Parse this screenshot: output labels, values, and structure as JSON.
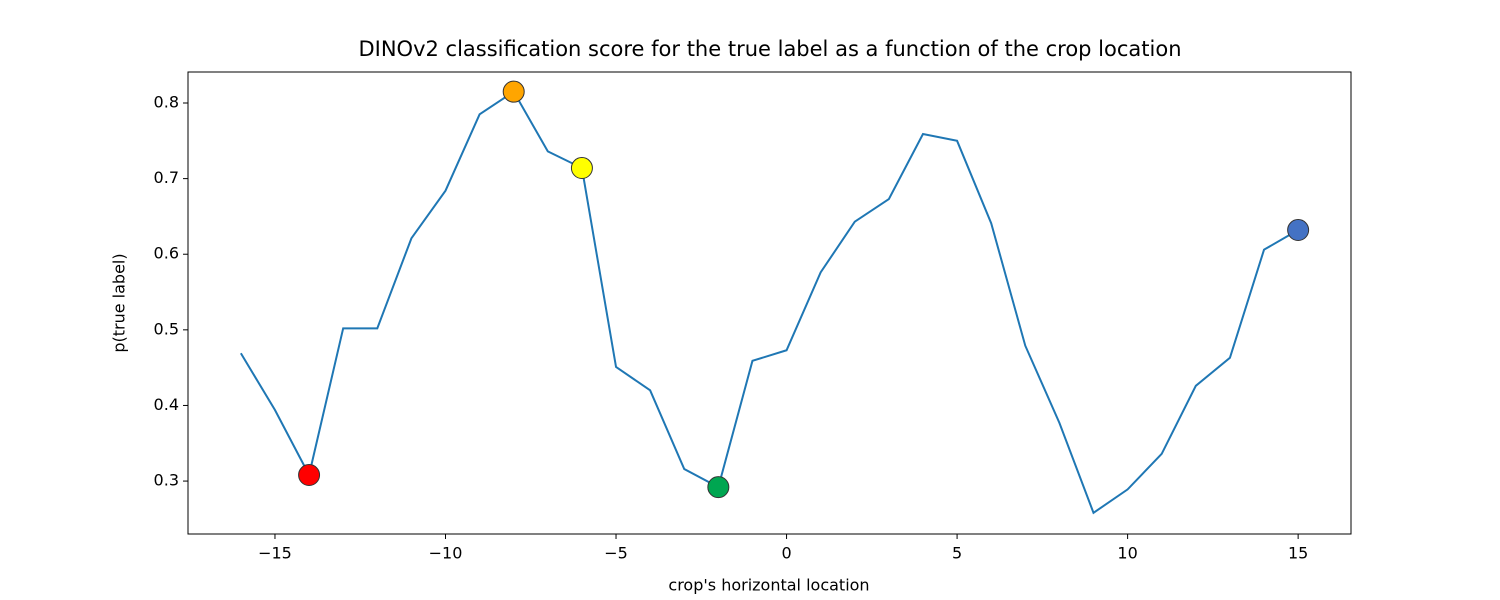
{
  "chart_data": {
    "type": "line",
    "title": "DINOv2 classification score for the true label as a function of the crop location",
    "xlabel": "crop's horizontal location",
    "ylabel": "p(true label)",
    "x": [
      -16,
      -15,
      -14,
      -13,
      -12,
      -11,
      -10,
      -9,
      -8,
      -7,
      -6,
      -5,
      -4,
      -3,
      -2,
      -1,
      0,
      1,
      2,
      3,
      4,
      5,
      6,
      7,
      8,
      9,
      10,
      11,
      12,
      13,
      14,
      15
    ],
    "series": [
      {
        "color": "#1f77b4",
        "values": [
          0.469,
          0.394,
          0.308,
          0.502,
          0.502,
          0.621,
          0.684,
          0.785,
          0.815,
          0.736,
          0.714,
          0.451,
          0.42,
          0.316,
          0.292,
          0.459,
          0.473,
          0.576,
          0.643,
          0.673,
          0.759,
          0.75,
          0.641,
          0.479,
          0.377,
          0.258,
          0.289,
          0.336,
          0.426,
          0.463,
          0.606,
          0.632
        ]
      }
    ],
    "markers": {
      "x": [
        -14,
        -8,
        -6,
        -2,
        15
      ],
      "y": [
        0.308,
        0.815,
        0.714,
        0.292,
        0.632
      ],
      "colors": [
        "#ff0000",
        "#ffa500",
        "#ffff00",
        "#00a651",
        "#4472c4"
      ]
    },
    "xlim": [
      -17.55,
      16.55
    ],
    "ylim": [
      0.23,
      0.841
    ],
    "xticks": [
      {
        "value": -15,
        "label": "−15"
      },
      {
        "value": -10,
        "label": "−10"
      },
      {
        "value": -5,
        "label": "−5"
      },
      0,
      5,
      10,
      15
    ],
    "yticks": [
      0.3,
      0.4,
      0.5,
      0.6,
      0.7,
      0.8
    ],
    "grid": false
  }
}
